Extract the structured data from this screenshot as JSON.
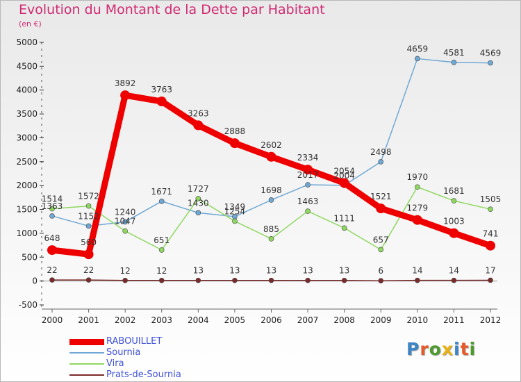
{
  "page": {
    "title": "Evolution du Montant de la Dette par Habitant",
    "subtitle": "(en €)",
    "logo": "Proxiti",
    "logo_colors": [
      "#3a86c9",
      "#e85a2a",
      "#4f9a2f",
      "#e8b215",
      "#3a86c9",
      "#e85a2a",
      "#4f9a2f"
    ]
  },
  "chart_data": {
    "type": "line",
    "title": "Evolution du Montant de la Dette par Habitant",
    "subtitle": "(en €)",
    "xlabel": "",
    "ylabel": "",
    "ylim": [
      -500,
      5000
    ],
    "yticks": [
      -500,
      0,
      500,
      1000,
      1500,
      2000,
      2500,
      3000,
      3500,
      4000,
      4500,
      5000
    ],
    "x": [
      "2000",
      "2001",
      "2002",
      "2003",
      "2004",
      "2005",
      "2006",
      "2007",
      "2008",
      "2009",
      "2010",
      "2011",
      "2012"
    ],
    "grid": false,
    "legend_position": "bottom-left",
    "series": [
      {
        "name": "RABOUILLET",
        "color": "#ee0000",
        "emphasis": true,
        "values": [
          648,
          560,
          3892,
          3763,
          3263,
          2888,
          2602,
          2334,
          2054,
          1521,
          1279,
          1003,
          741
        ]
      },
      {
        "name": "Sournia",
        "color": "#6fa8d4",
        "emphasis": false,
        "values": [
          1363,
          1152,
          1240,
          1671,
          1430,
          1349,
          1698,
          2017,
          2004,
          2498,
          4659,
          4581,
          4569
        ]
      },
      {
        "name": "Vira",
        "color": "#8fd860",
        "emphasis": false,
        "values": [
          1514,
          1572,
          1047,
          651,
          1727,
          1254,
          885,
          1463,
          1111,
          657,
          1970,
          1681,
          1505
        ]
      },
      {
        "name": "Prats-de-Sournia",
        "color": "#7a2a2a",
        "emphasis": false,
        "values": [
          22,
          22,
          12,
          12,
          13,
          13,
          13,
          13,
          13,
          6,
          14,
          14,
          17
        ]
      }
    ]
  }
}
